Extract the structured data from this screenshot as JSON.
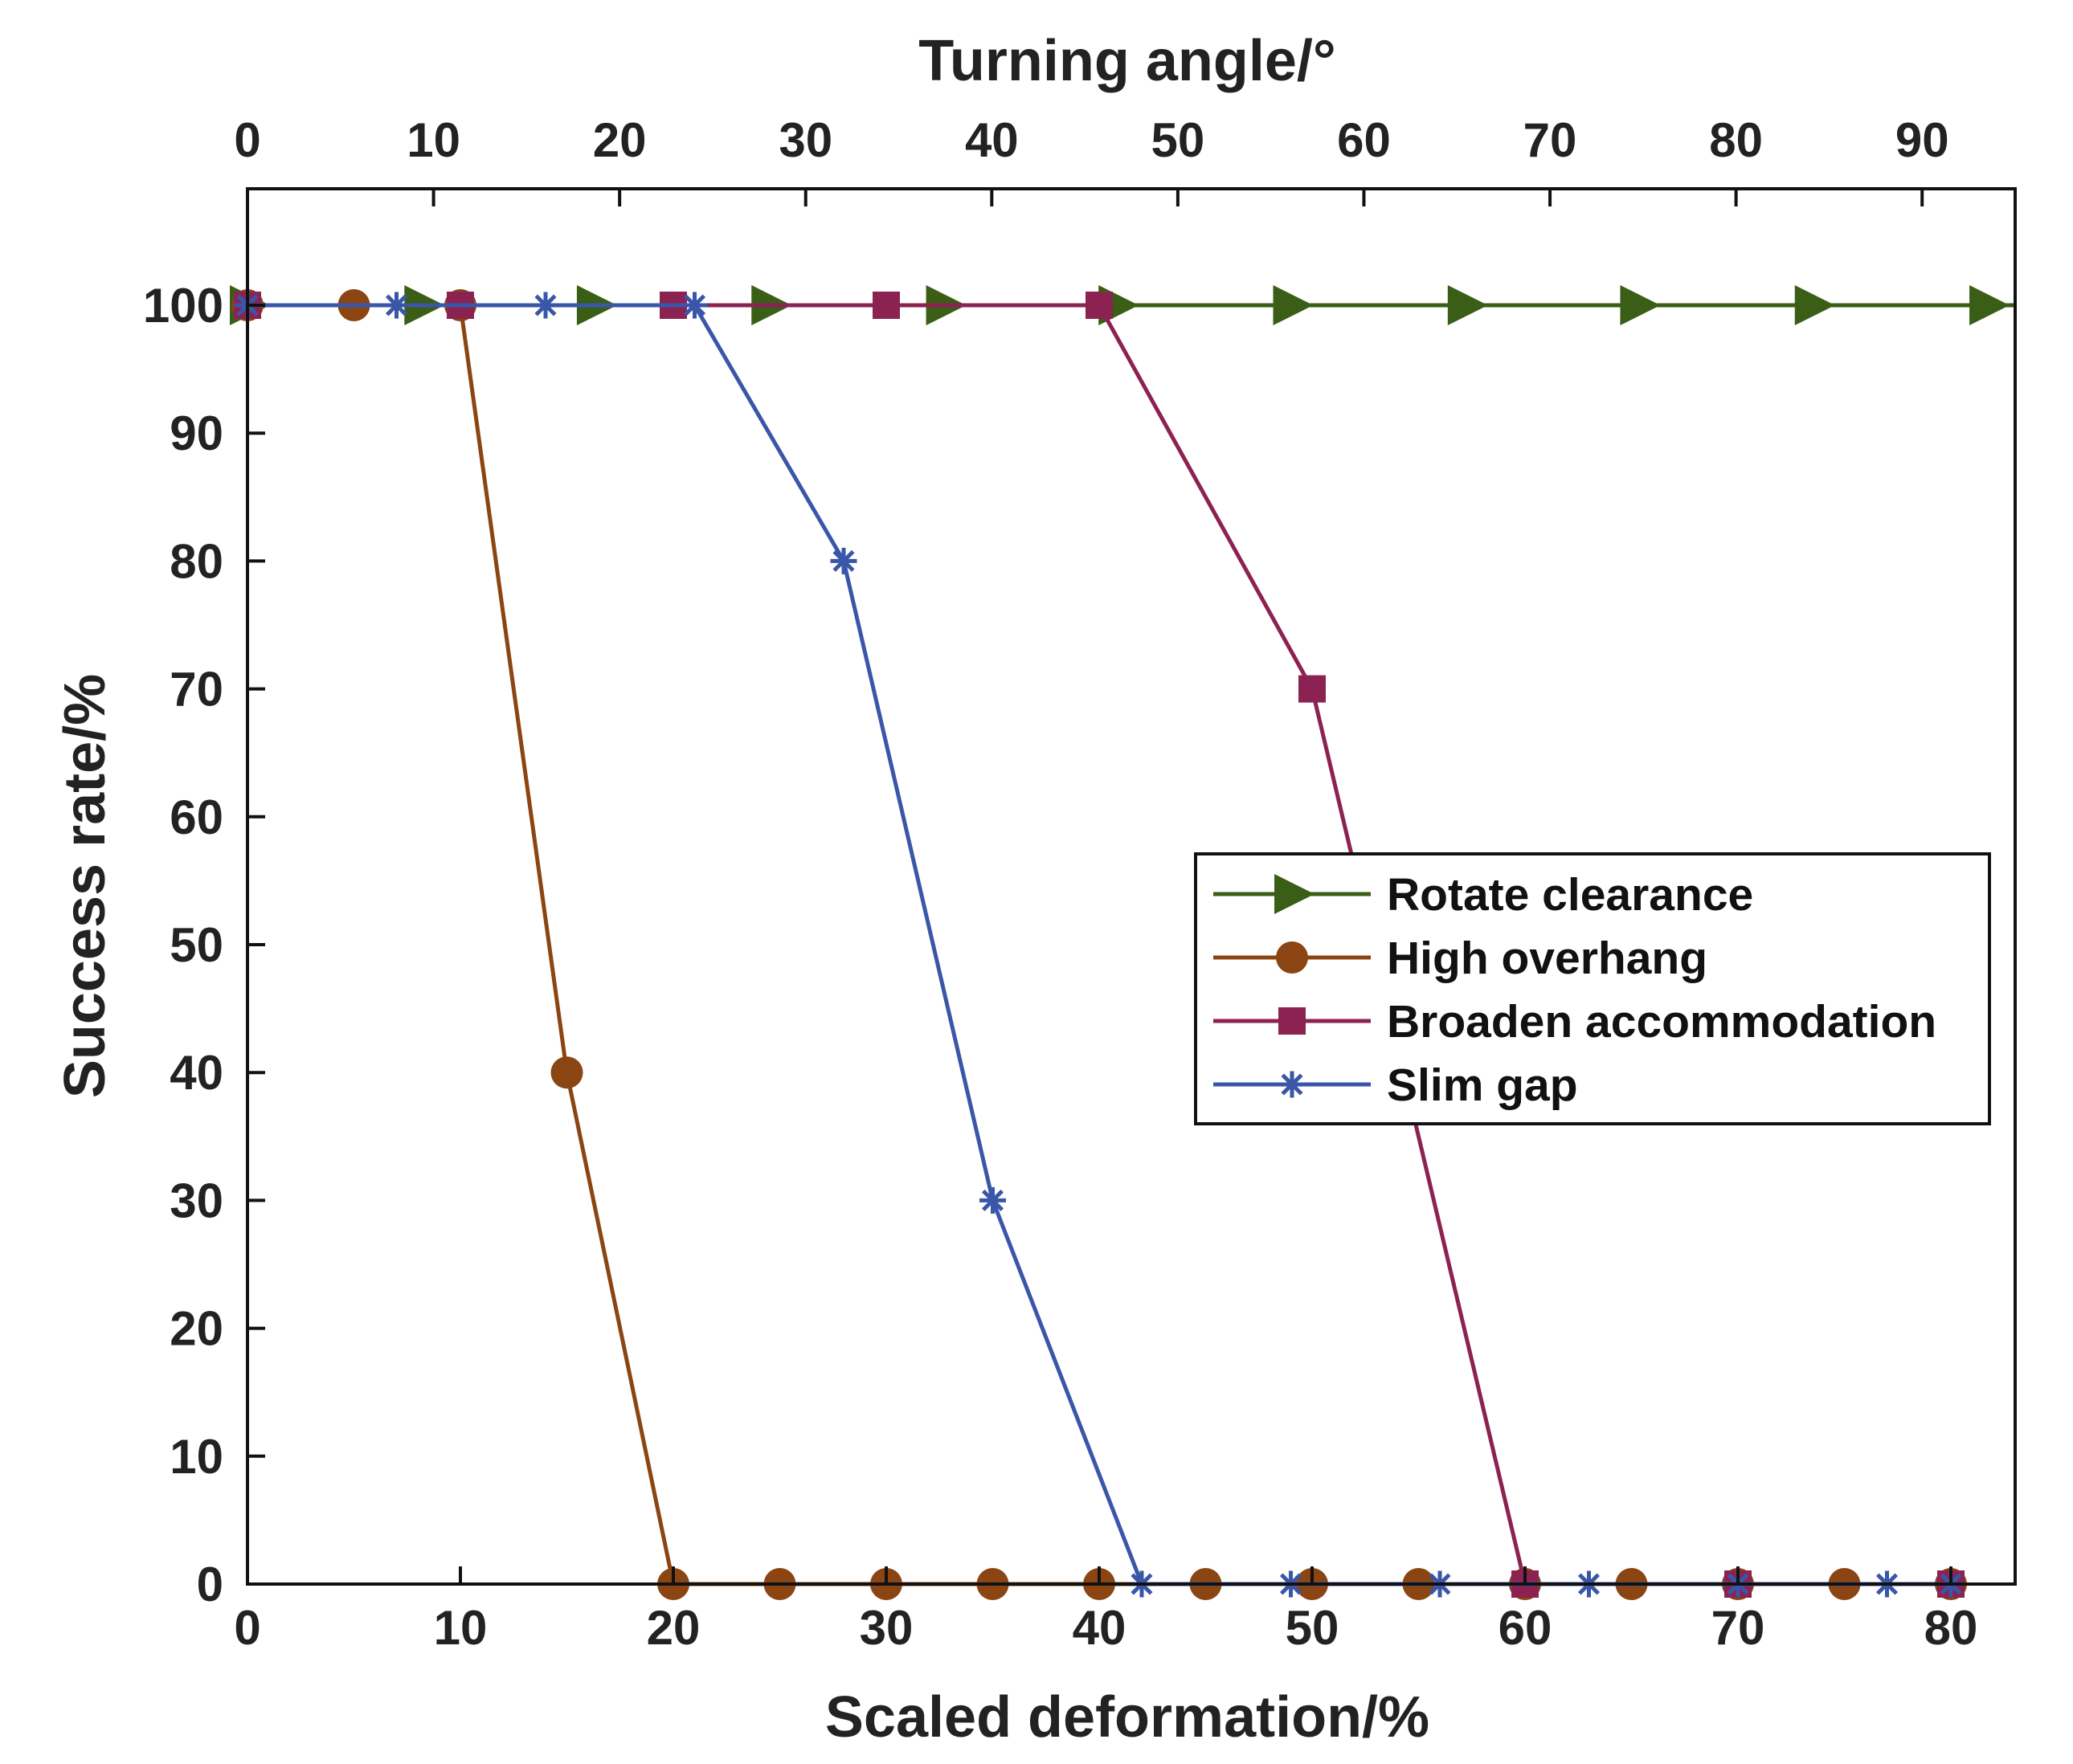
{
  "chart_data": {
    "type": "line",
    "title": "",
    "xlabel": "Scaled deformation/%",
    "x2label": "Turning angle/°",
    "ylabel": "Success rate/%",
    "xlim": [
      0,
      84
    ],
    "x2lim": [
      0,
      95
    ],
    "ylim": [
      0,
      110
    ],
    "xticks": [
      0,
      10,
      20,
      30,
      40,
      50,
      60,
      70,
      80
    ],
    "x2ticks": [
      0,
      10,
      20,
      30,
      40,
      50,
      60,
      70,
      80,
      90
    ],
    "yticks": [
      0,
      10,
      20,
      30,
      40,
      50,
      60,
      70,
      80,
      90,
      100
    ],
    "xtick_labels": [
      "0",
      "10",
      "20",
      "30",
      "40",
      "50",
      "60",
      "70",
      "80"
    ],
    "x2tick_labels": [
      "0",
      "10",
      "20",
      "30",
      "40",
      "50",
      "60",
      "70",
      "80",
      "90"
    ],
    "ytick_labels": [
      "0",
      "10",
      "20",
      "30",
      "40",
      "50",
      "60",
      "70",
      "80",
      "90",
      "100"
    ],
    "grid": false,
    "legend_position": "center-right",
    "series": [
      {
        "name": "Rotate clearance",
        "color": "#3b5e16",
        "marker": "triangle-right",
        "x": [
          0,
          8.2,
          16.3,
          24.5,
          32.7,
          40.8,
          49.0,
          57.2,
          65.3,
          73.5,
          81.7
        ],
        "y": [
          100,
          100,
          100,
          100,
          100,
          100,
          100,
          100,
          100,
          100,
          100
        ]
      },
      {
        "name": "High overhang",
        "color": "#8b4513",
        "marker": "circle",
        "x": [
          0,
          5,
          10,
          15,
          20,
          25,
          30,
          35,
          40,
          45,
          50,
          55,
          60,
          65,
          70,
          75,
          80
        ],
        "y": [
          100,
          100,
          100,
          40,
          0,
          0,
          0,
          0,
          0,
          0,
          0,
          0,
          0,
          0,
          0,
          0,
          0
        ]
      },
      {
        "name": "Broaden accommodation",
        "color": "#8b2252",
        "marker": "square",
        "x": [
          0,
          10,
          20,
          30,
          40,
          50,
          60,
          70,
          80
        ],
        "y": [
          100,
          100,
          100,
          100,
          100,
          70,
          0,
          0,
          0
        ]
      },
      {
        "name": "Slim gap",
        "color": "#3a56a8",
        "marker": "asterisk",
        "x": [
          0,
          7,
          14,
          21,
          28,
          35,
          42,
          49,
          56,
          63,
          70,
          77,
          80
        ],
        "y": [
          100,
          100,
          100,
          100,
          80,
          30,
          0,
          0,
          0,
          0,
          0,
          0,
          0
        ]
      }
    ]
  }
}
